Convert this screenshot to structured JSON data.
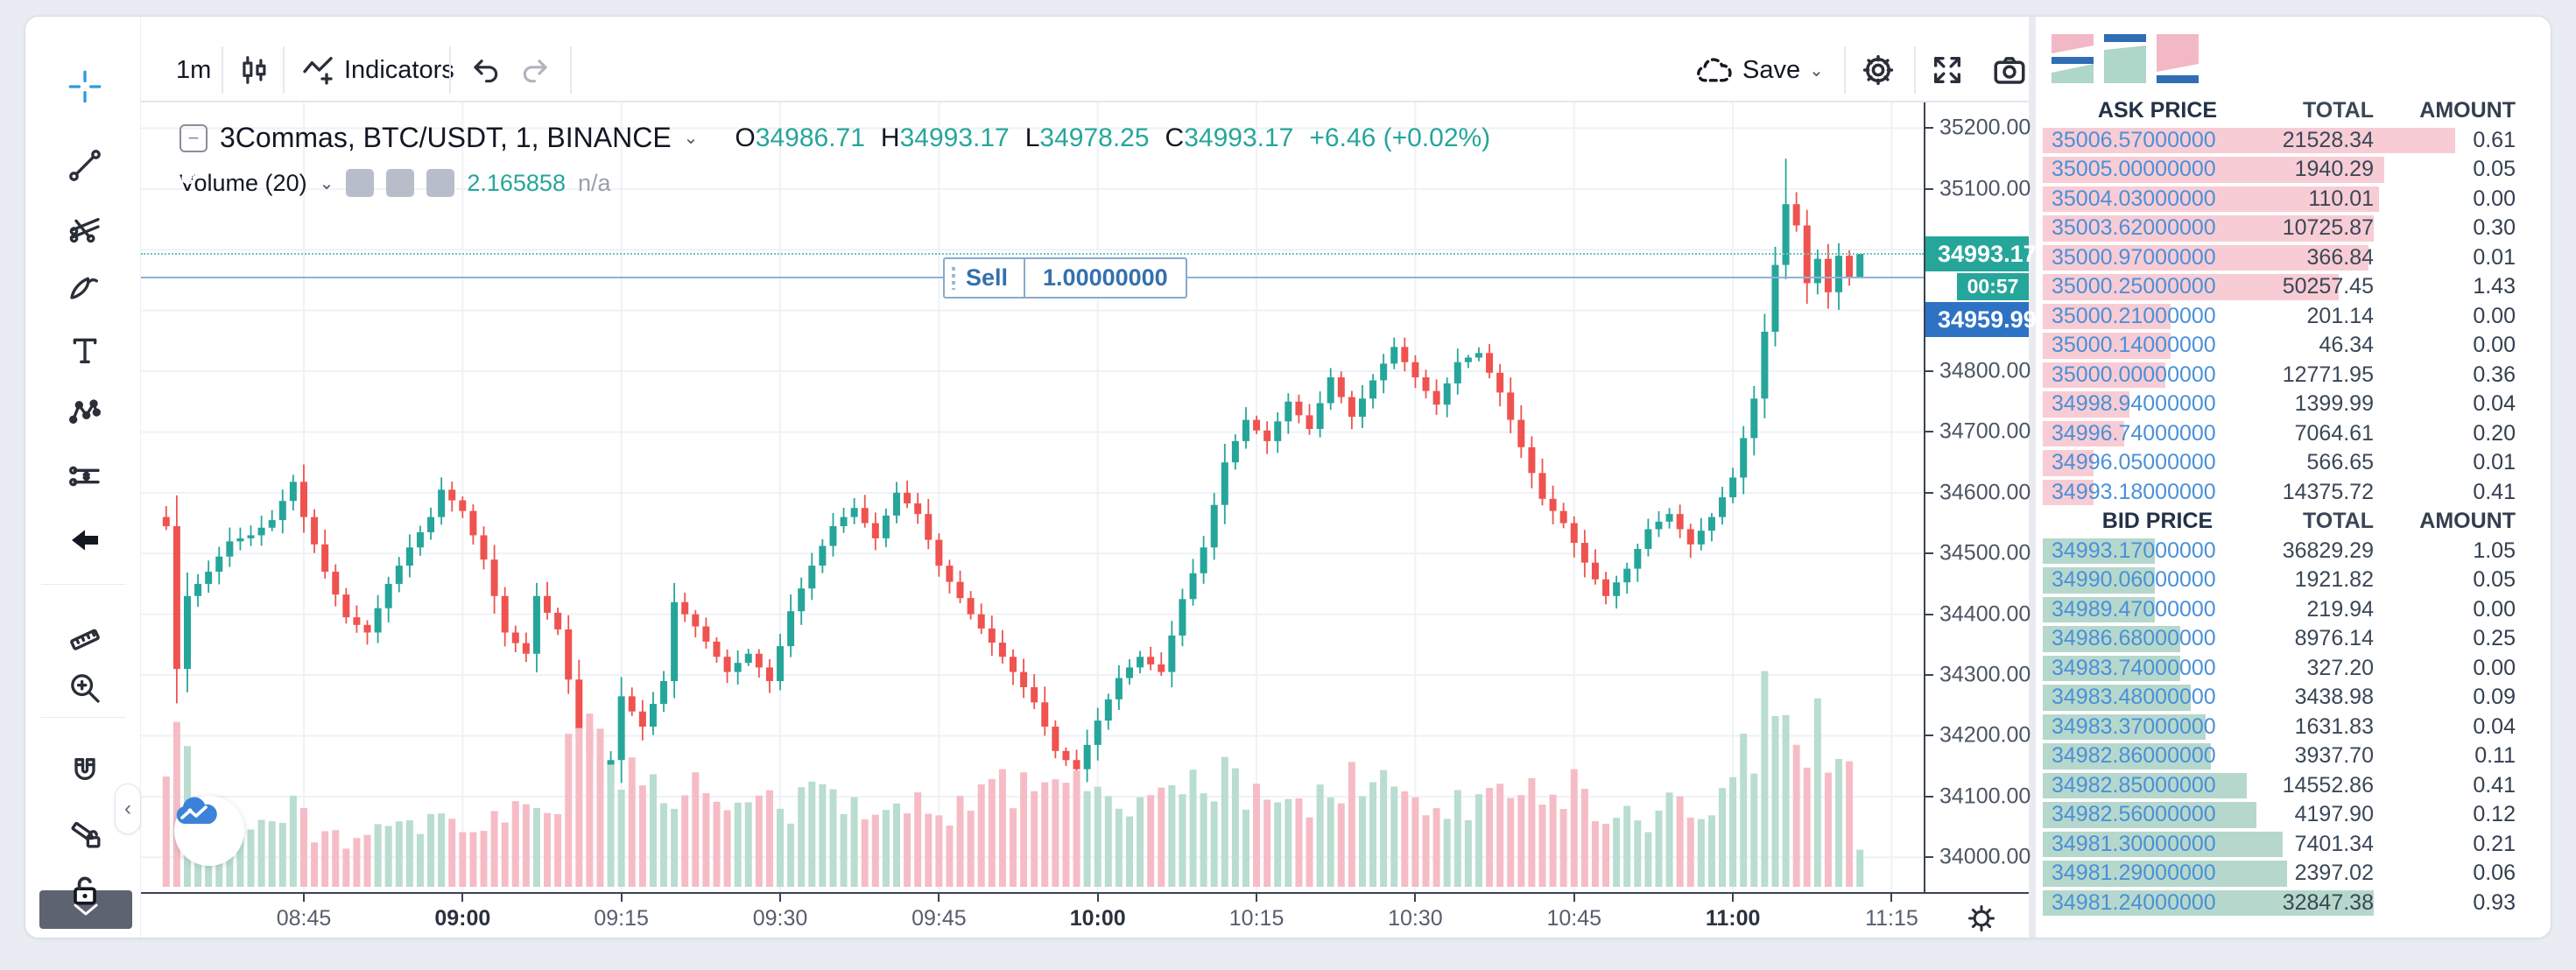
{
  "toolbar": {
    "interval": "1m",
    "indicators_label": "Indicators",
    "save_label": "Save"
  },
  "symbol_header": {
    "title": "3Commas, BTC/USDT, 1, BINANCE",
    "o_label": "O",
    "o": "34986.71",
    "h_label": "H",
    "h": "34993.17",
    "l_label": "L",
    "l": "34978.25",
    "c_label": "C",
    "c": "34993.17",
    "change": "+6.46 (+0.02%)"
  },
  "volume_row": {
    "label": "Volume (20)",
    "value": "2.165858",
    "na": "n/a"
  },
  "sell_widget": {
    "side": "Sell",
    "qty": "1.00000000"
  },
  "price_axis": {
    "current_badge": "34993.17",
    "countdown": "00:57",
    "order_badge": "34959.99",
    "ticks": [
      "35200.00",
      "35100.00",
      "34800.00",
      "34700.00",
      "34600.00",
      "34500.00",
      "34400.00",
      "34300.00",
      "34200.00",
      "34100.00",
      "34000.00"
    ]
  },
  "time_axis": {
    "ticks": [
      {
        "label": "08:45",
        "bold": false
      },
      {
        "label": "09:00",
        "bold": true
      },
      {
        "label": "09:15",
        "bold": false
      },
      {
        "label": "09:30",
        "bold": false
      },
      {
        "label": "09:45",
        "bold": false
      },
      {
        "label": "10:00",
        "bold": true
      },
      {
        "label": "10:15",
        "bold": false
      },
      {
        "label": "10:30",
        "bold": false
      },
      {
        "label": "10:45",
        "bold": false
      },
      {
        "label": "11:00",
        "bold": true
      },
      {
        "label": "11:15",
        "bold": false
      }
    ]
  },
  "orderbook": {
    "ask_header": [
      "ASK PRICE",
      "TOTAL",
      "AMOUNT"
    ],
    "bid_header": [
      "BID PRICE",
      "TOTAL",
      "AMOUNT"
    ],
    "asks": [
      {
        "price": "35006.57000000",
        "total": "21528.34",
        "amount": "0.61",
        "depth": 81
      },
      {
        "price": "35005.00000000",
        "total": "1940.29",
        "amount": "0.05",
        "depth": 67
      },
      {
        "price": "35004.03000000",
        "total": "110.01",
        "amount": "0.00",
        "depth": 66
      },
      {
        "price": "35003.62000000",
        "total": "10725.87",
        "amount": "0.30",
        "depth": 65
      },
      {
        "price": "35000.97000000",
        "total": "366.84",
        "amount": "0.01",
        "depth": 64
      },
      {
        "price": "35000.25000000",
        "total": "50257.45",
        "amount": "1.43",
        "depth": 58
      },
      {
        "price": "35000.21000000",
        "total": "201.14",
        "amount": "0.00",
        "depth": 25
      },
      {
        "price": "35000.14000000",
        "total": "46.34",
        "amount": "0.00",
        "depth": 25
      },
      {
        "price": "35000.00000000",
        "total": "12771.95",
        "amount": "0.36",
        "depth": 24
      },
      {
        "price": "34998.94000000",
        "total": "1399.99",
        "amount": "0.04",
        "depth": 17
      },
      {
        "price": "34996.74000000",
        "total": "7064.61",
        "amount": "0.20",
        "depth": 16
      },
      {
        "price": "34996.05000000",
        "total": "566.65",
        "amount": "0.01",
        "depth": 10
      },
      {
        "price": "34993.18000000",
        "total": "14375.72",
        "amount": "0.41",
        "depth": 10
      }
    ],
    "bids": [
      {
        "price": "34993.17000000",
        "total": "36829.29",
        "amount": "1.05",
        "depth": 22
      },
      {
        "price": "34990.06000000",
        "total": "1921.82",
        "amount": "0.05",
        "depth": 22
      },
      {
        "price": "34989.47000000",
        "total": "219.94",
        "amount": "0.00",
        "depth": 22
      },
      {
        "price": "34986.68000000",
        "total": "8976.14",
        "amount": "0.25",
        "depth": 27
      },
      {
        "price": "34983.74000000",
        "total": "327.20",
        "amount": "0.00",
        "depth": 27
      },
      {
        "price": "34983.48000000",
        "total": "3438.98",
        "amount": "0.09",
        "depth": 29
      },
      {
        "price": "34983.37000000",
        "total": "1631.83",
        "amount": "0.04",
        "depth": 32
      },
      {
        "price": "34982.86000000",
        "total": "3937.70",
        "amount": "0.11",
        "depth": 33
      },
      {
        "price": "34982.85000000",
        "total": "14552.86",
        "amount": "0.41",
        "depth": 40
      },
      {
        "price": "34982.56000000",
        "total": "4197.90",
        "amount": "0.12",
        "depth": 42
      },
      {
        "price": "34981.30000000",
        "total": "7401.34",
        "amount": "0.21",
        "depth": 47
      },
      {
        "price": "34981.29000000",
        "total": "2397.02",
        "amount": "0.06",
        "depth": 48
      },
      {
        "price": "34981.24000000",
        "total": "32847.38",
        "amount": "0.93",
        "depth": 65
      }
    ]
  },
  "colors": {
    "up": "#26a69a",
    "down": "#ef5350",
    "vol_up": "#b9ddd0",
    "vol_down": "#f6bcc6",
    "grid": "#eef2f7",
    "ask_depth": "#f8ccd4",
    "bid_depth": "#b6d8cc",
    "price_blue": "#4a90d9",
    "current_badge": "#26a69a",
    "order_badge": "#2e72c4",
    "order_line": "#90b1d6",
    "current_line": "#6cc4ba"
  },
  "chart_data": {
    "type": "candlestick",
    "symbol": "BTC/USDT",
    "interval": "1m",
    "exchange": "BINANCE",
    "volume_indicator": "Volume (20)",
    "visible_time_range": [
      "08:32",
      "11:20"
    ],
    "price_axis_range": [
      34000,
      35200
    ],
    "price_tick_step": 100,
    "current_price": 34993.17,
    "countdown": "00:57",
    "order_line": {
      "side": "Sell",
      "qty": "1.00000000",
      "price": 34959.99
    },
    "last_candle": {
      "o": 34986.71,
      "h": 34993.17,
      "l": 34978.25,
      "c": 34993.17
    },
    "close_path_anchors": [
      [
        "08:32",
        34545
      ],
      [
        "08:33",
        34310
      ],
      [
        "08:34",
        34430
      ],
      [
        "08:36",
        34470
      ],
      [
        "08:38",
        34520
      ],
      [
        "08:40",
        34530
      ],
      [
        "08:42",
        34555
      ],
      [
        "08:44",
        34618
      ],
      [
        "08:45",
        34560
      ],
      [
        "08:47",
        34470
      ],
      [
        "08:49",
        34395
      ],
      [
        "08:51",
        34370
      ],
      [
        "08:53",
        34450
      ],
      [
        "08:55",
        34510
      ],
      [
        "08:57",
        34560
      ],
      [
        "08:58",
        34605
      ],
      [
        "09:00",
        34570
      ],
      [
        "09:02",
        34490
      ],
      [
        "09:04",
        34370
      ],
      [
        "09:06",
        34335
      ],
      [
        "09:07",
        34430
      ],
      [
        "09:09",
        34375
      ],
      [
        "09:11",
        34210
      ],
      [
        "09:13",
        34120
      ],
      [
        "09:14",
        34160
      ],
      [
        "09:15",
        34265
      ],
      [
        "09:17",
        34215
      ],
      [
        "09:19",
        34290
      ],
      [
        "09:20",
        34420
      ],
      [
        "09:22",
        34380
      ],
      [
        "09:25",
        34305
      ],
      [
        "09:27",
        34335
      ],
      [
        "09:29",
        34290
      ],
      [
        "09:31",
        34405
      ],
      [
        "09:33",
        34480
      ],
      [
        "09:35",
        34545
      ],
      [
        "09:37",
        34575
      ],
      [
        "09:39",
        34525
      ],
      [
        "09:41",
        34600
      ],
      [
        "09:43",
        34565
      ],
      [
        "09:45",
        34480
      ],
      [
        "09:48",
        34400
      ],
      [
        "09:51",
        34330
      ],
      [
        "09:54",
        34255
      ],
      [
        "09:56",
        34175
      ],
      [
        "09:58",
        34145
      ],
      [
        "10:00",
        34225
      ],
      [
        "10:02",
        34295
      ],
      [
        "10:04",
        34330
      ],
      [
        "10:06",
        34305
      ],
      [
        "10:08",
        34425
      ],
      [
        "10:10",
        34510
      ],
      [
        "10:12",
        34650
      ],
      [
        "10:14",
        34720
      ],
      [
        "10:16",
        34685
      ],
      [
        "10:18",
        34750
      ],
      [
        "10:20",
        34705
      ],
      [
        "10:22",
        34790
      ],
      [
        "10:24",
        34725
      ],
      [
        "10:26",
        34785
      ],
      [
        "10:28",
        34840
      ],
      [
        "10:30",
        34790
      ],
      [
        "10:32",
        34745
      ],
      [
        "10:34",
        34815
      ],
      [
        "10:36",
        34830
      ],
      [
        "10:38",
        34765
      ],
      [
        "10:40",
        34675
      ],
      [
        "10:42",
        34590
      ],
      [
        "10:44",
        34550
      ],
      [
        "10:46",
        34485
      ],
      [
        "10:48",
        34430
      ],
      [
        "10:50",
        34475
      ],
      [
        "10:52",
        34540
      ],
      [
        "10:54",
        34565
      ],
      [
        "10:56",
        34515
      ],
      [
        "10:58",
        34560
      ],
      [
        "11:00",
        34625
      ],
      [
        "11:02",
        34755
      ],
      [
        "11:04",
        34975
      ],
      [
        "11:05",
        35075
      ],
      [
        "11:06",
        35040
      ],
      [
        "11:07",
        34945
      ],
      [
        "11:08",
        34985
      ],
      [
        "11:09",
        34930
      ],
      [
        "11:10",
        34990
      ],
      [
        "11:11",
        34955
      ],
      [
        "11:12",
        34993.17
      ]
    ],
    "volume_anchors": [
      [
        "08:32",
        0.55
      ],
      [
        "08:33",
        0.95
      ],
      [
        "08:35",
        0.35
      ],
      [
        "08:38",
        0.28
      ],
      [
        "08:41",
        0.33
      ],
      [
        "08:44",
        0.38
      ],
      [
        "08:47",
        0.28
      ],
      [
        "08:50",
        0.24
      ],
      [
        "08:53",
        0.28
      ],
      [
        "08:56",
        0.3
      ],
      [
        "08:59",
        0.33
      ],
      [
        "09:02",
        0.3
      ],
      [
        "09:05",
        0.38
      ],
      [
        "09:07",
        0.44
      ],
      [
        "09:09",
        0.5
      ],
      [
        "09:11",
        0.8
      ],
      [
        "09:12",
        1.0
      ],
      [
        "09:13",
        0.85
      ],
      [
        "09:15",
        0.6
      ],
      [
        "09:17",
        0.5
      ],
      [
        "09:19",
        0.45
      ],
      [
        "09:21",
        0.55
      ],
      [
        "09:24",
        0.4
      ],
      [
        "09:27",
        0.45
      ],
      [
        "09:30",
        0.4
      ],
      [
        "09:33",
        0.5
      ],
      [
        "09:36",
        0.4
      ],
      [
        "09:39",
        0.45
      ],
      [
        "09:42",
        0.5
      ],
      [
        "09:45",
        0.38
      ],
      [
        "09:48",
        0.45
      ],
      [
        "09:51",
        0.5
      ],
      [
        "09:54",
        0.55
      ],
      [
        "09:57",
        0.65
      ],
      [
        "10:00",
        0.5
      ],
      [
        "10:03",
        0.4
      ],
      [
        "10:06",
        0.45
      ],
      [
        "10:09",
        0.5
      ],
      [
        "10:12",
        0.55
      ],
      [
        "10:15",
        0.45
      ],
      [
        "10:18",
        0.4
      ],
      [
        "10:21",
        0.5
      ],
      [
        "10:24",
        0.55
      ],
      [
        "10:27",
        0.5
      ],
      [
        "10:30",
        0.45
      ],
      [
        "10:33",
        0.4
      ],
      [
        "10:36",
        0.45
      ],
      [
        "10:39",
        0.5
      ],
      [
        "10:42",
        0.55
      ],
      [
        "10:45",
        0.5
      ],
      [
        "10:48",
        0.4
      ],
      [
        "10:51",
        0.35
      ],
      [
        "10:54",
        0.4
      ],
      [
        "10:57",
        0.45
      ],
      [
        "11:00",
        0.55
      ],
      [
        "11:02",
        0.75
      ],
      [
        "11:03",
        1.0
      ],
      [
        "11:04",
        0.95
      ],
      [
        "11:05",
        0.8
      ],
      [
        "11:06",
        0.6
      ],
      [
        "11:07",
        0.55
      ],
      [
        "11:08",
        0.8
      ],
      [
        "11:09",
        0.6
      ],
      [
        "11:10",
        0.9
      ],
      [
        "11:11",
        0.55
      ],
      [
        "11:12",
        0.2
      ]
    ]
  }
}
